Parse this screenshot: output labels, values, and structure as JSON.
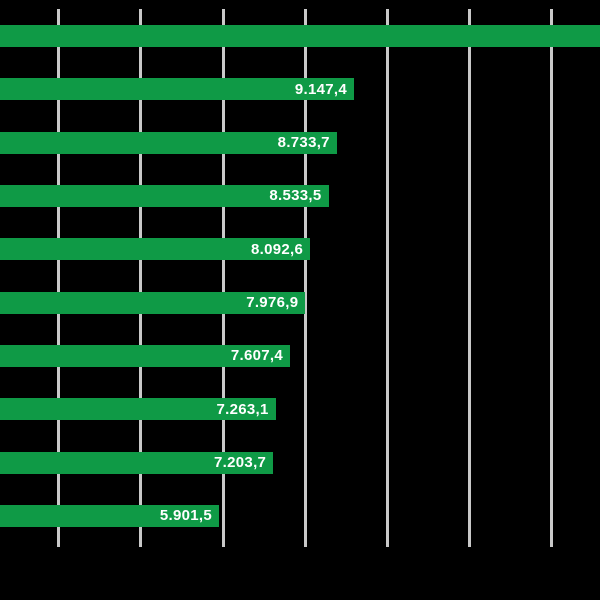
{
  "chart_data": {
    "type": "bar",
    "orientation": "horizontal",
    "title": "",
    "xlabel": "",
    "ylabel": "",
    "grid": true,
    "gridline_count": 7,
    "categories": [],
    "values": [
      null,
      9147.4,
      8733.7,
      8533.5,
      8092.6,
      7976.9,
      7607.4,
      7263.1,
      7203.7,
      5901.5
    ],
    "value_labels": [
      "",
      "9.147,4",
      "8.733,7",
      "8.533,5",
      "8.092,6",
      "7.976,9",
      "7.607,4",
      "7.263,1",
      "7.203,7",
      "5.901,5"
    ],
    "notes": "Top bar runs past the right edge of the crop, so its value label is not visible; bars start at the left edge (category labels cropped out); no axis tick labels visible.",
    "colors": {
      "bar": "#0F9A46",
      "value_label_text": "#FFFFFF",
      "gridline": "#C9C9C9",
      "background": "#000000"
    }
  }
}
